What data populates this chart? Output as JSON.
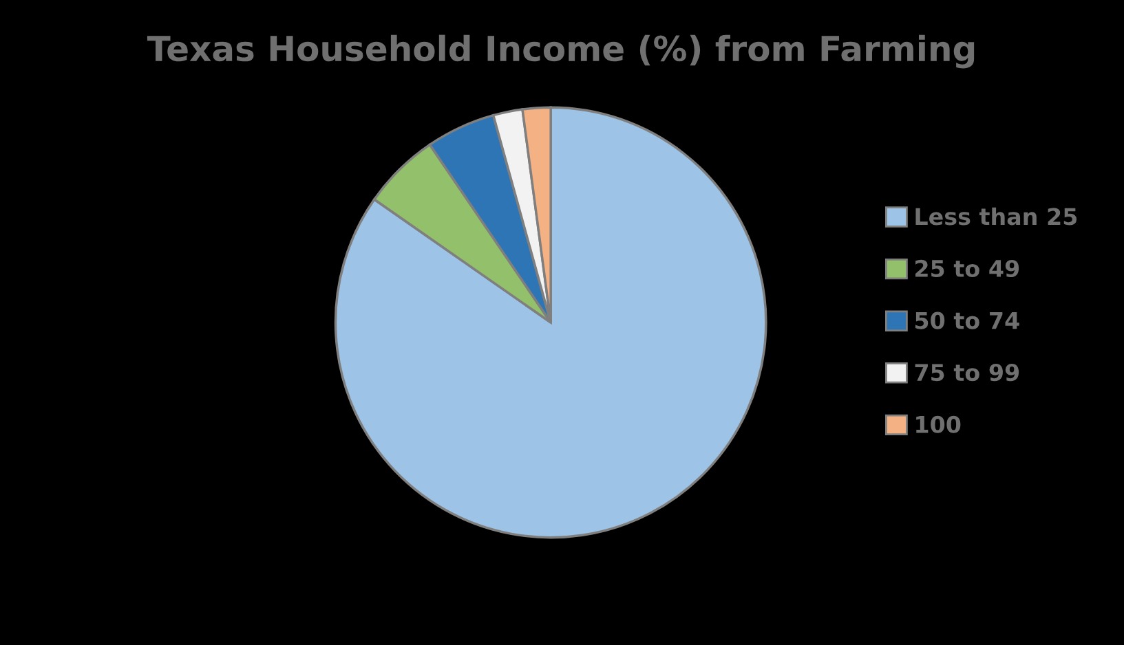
{
  "chart_data": {
    "type": "pie",
    "title": "Texas Household Income (%) from Farming",
    "categories": [
      "Less than 25",
      "25 to 49",
      "50 to 74",
      "75 to 99",
      "100"
    ],
    "values": [
      84.7,
      5.8,
      5.2,
      2.2,
      2.1
    ],
    "colors": [
      "#9dc3e6",
      "#93c06a",
      "#2e75b6",
      "#f2f2f2",
      "#f4b183"
    ],
    "legend": "right"
  }
}
